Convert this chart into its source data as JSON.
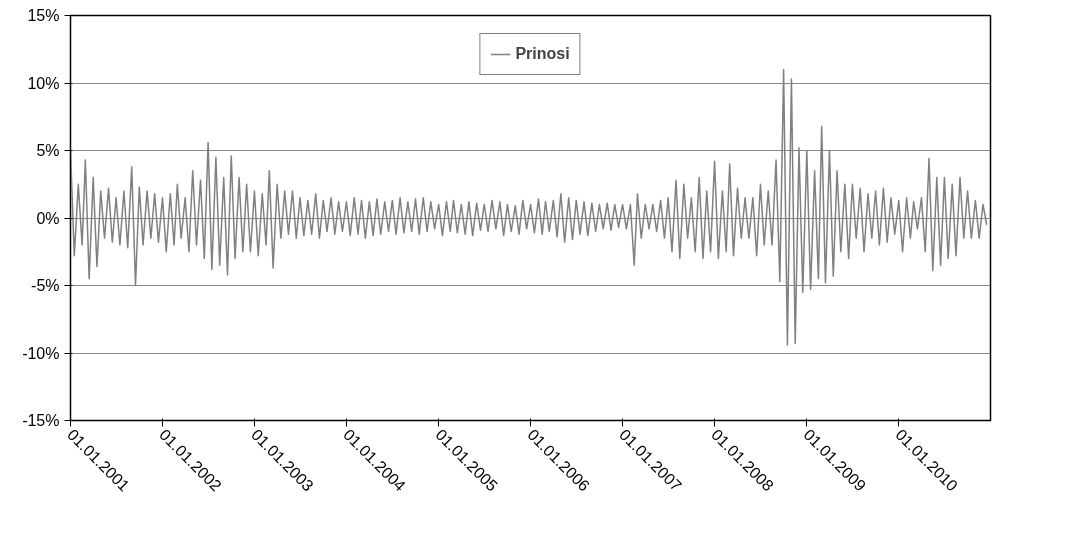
{
  "chart_data": {
    "type": "line",
    "x": [
      "2001-01-01",
      "2001-01-16",
      "2001-02-01",
      "2001-02-16",
      "2001-03-01",
      "2001-03-16",
      "2001-04-01",
      "2001-04-16",
      "2001-05-01",
      "2001-05-16",
      "2001-06-01",
      "2001-06-16",
      "2001-07-01",
      "2001-07-16",
      "2001-08-01",
      "2001-08-16",
      "2001-09-01",
      "2001-09-16",
      "2001-10-01",
      "2001-10-16",
      "2001-11-01",
      "2001-11-16",
      "2001-12-01",
      "2001-12-16",
      "2002-01-01",
      "2002-01-16",
      "2002-02-01",
      "2002-02-16",
      "2002-03-01",
      "2002-03-16",
      "2002-04-01",
      "2002-04-16",
      "2002-05-01",
      "2002-05-16",
      "2002-06-01",
      "2002-06-16",
      "2002-07-01",
      "2002-07-16",
      "2002-08-01",
      "2002-08-16",
      "2002-09-01",
      "2002-09-16",
      "2002-10-01",
      "2002-10-16",
      "2002-11-01",
      "2002-11-16",
      "2002-12-01",
      "2002-12-16",
      "2003-01-01",
      "2003-01-16",
      "2003-02-01",
      "2003-02-16",
      "2003-03-01",
      "2003-03-16",
      "2003-04-01",
      "2003-04-16",
      "2003-05-01",
      "2003-05-16",
      "2003-06-01",
      "2003-06-16",
      "2003-07-01",
      "2003-07-16",
      "2003-08-01",
      "2003-08-16",
      "2003-09-01",
      "2003-09-16",
      "2003-10-01",
      "2003-10-16",
      "2003-11-01",
      "2003-11-16",
      "2003-12-01",
      "2003-12-16",
      "2004-01-01",
      "2004-01-16",
      "2004-02-01",
      "2004-02-16",
      "2004-03-01",
      "2004-03-16",
      "2004-04-01",
      "2004-04-16",
      "2004-05-01",
      "2004-05-16",
      "2004-06-01",
      "2004-06-16",
      "2004-07-01",
      "2004-07-16",
      "2004-08-01",
      "2004-08-16",
      "2004-09-01",
      "2004-09-16",
      "2004-10-01",
      "2004-10-16",
      "2004-11-01",
      "2004-11-16",
      "2004-12-01",
      "2004-12-16",
      "2005-01-01",
      "2005-01-16",
      "2005-02-01",
      "2005-02-16",
      "2005-03-01",
      "2005-03-16",
      "2005-04-01",
      "2005-04-16",
      "2005-05-01",
      "2005-05-16",
      "2005-06-01",
      "2005-06-16",
      "2005-07-01",
      "2005-07-16",
      "2005-08-01",
      "2005-08-16",
      "2005-09-01",
      "2005-09-16",
      "2005-10-01",
      "2005-10-16",
      "2005-11-01",
      "2005-11-16",
      "2005-12-01",
      "2005-12-16",
      "2006-01-01",
      "2006-01-16",
      "2006-02-01",
      "2006-02-16",
      "2006-03-01",
      "2006-03-16",
      "2006-04-01",
      "2006-04-16",
      "2006-05-01",
      "2006-05-16",
      "2006-06-01",
      "2006-06-16",
      "2006-07-01",
      "2006-07-16",
      "2006-08-01",
      "2006-08-16",
      "2006-09-01",
      "2006-09-16",
      "2006-10-01",
      "2006-10-16",
      "2006-11-01",
      "2006-11-16",
      "2006-12-01",
      "2006-12-16",
      "2007-01-01",
      "2007-01-16",
      "2007-02-01",
      "2007-02-16",
      "2007-03-01",
      "2007-03-16",
      "2007-04-01",
      "2007-04-16",
      "2007-05-01",
      "2007-05-16",
      "2007-06-01",
      "2007-06-16",
      "2007-07-01",
      "2007-07-16",
      "2007-08-01",
      "2007-08-16",
      "2007-09-01",
      "2007-09-16",
      "2007-10-01",
      "2007-10-16",
      "2007-11-01",
      "2007-11-16",
      "2007-12-01",
      "2007-12-16",
      "2008-01-01",
      "2008-01-16",
      "2008-02-01",
      "2008-02-16",
      "2008-03-01",
      "2008-03-16",
      "2008-04-01",
      "2008-04-16",
      "2008-05-01",
      "2008-05-16",
      "2008-06-01",
      "2008-06-16",
      "2008-07-01",
      "2008-07-16",
      "2008-08-01",
      "2008-08-16",
      "2008-09-01",
      "2008-09-16",
      "2008-10-01",
      "2008-10-16",
      "2008-11-01",
      "2008-11-16",
      "2008-12-01",
      "2008-12-16",
      "2009-01-01",
      "2009-01-16",
      "2009-02-01",
      "2009-02-16",
      "2009-03-01",
      "2009-03-16",
      "2009-04-01",
      "2009-04-16",
      "2009-05-01",
      "2009-05-16",
      "2009-06-01",
      "2009-06-16",
      "2009-07-01",
      "2009-07-16",
      "2009-08-01",
      "2009-08-16",
      "2009-09-01",
      "2009-09-16",
      "2009-10-01",
      "2009-10-16",
      "2009-11-01",
      "2009-11-16",
      "2009-12-01",
      "2009-12-16",
      "2010-01-01",
      "2010-01-16",
      "2010-02-01",
      "2010-02-16",
      "2010-03-01",
      "2010-03-16",
      "2010-04-01",
      "2010-04-16",
      "2010-05-01",
      "2010-05-16",
      "2010-06-01",
      "2010-06-16",
      "2010-07-01",
      "2010-07-16",
      "2010-08-01",
      "2010-08-16",
      "2010-09-01",
      "2010-09-16",
      "2010-10-01",
      "2010-10-16",
      "2010-11-01",
      "2010-11-16",
      "2010-12-01",
      "2010-12-16"
    ],
    "series": [
      {
        "name": "Prinosi",
        "color": "#808080",
        "values": [
          5,
          -2.8,
          2.5,
          -2,
          4.3,
          -4.5,
          3,
          -3.6,
          2,
          -1.5,
          2.2,
          -1.8,
          1.5,
          -2,
          2,
          -2.2,
          3.8,
          -5,
          2.3,
          -2,
          2,
          -1.5,
          1.8,
          -1.8,
          1.5,
          -2.5,
          1.8,
          -2,
          2.5,
          -1.5,
          1.5,
          -2.5,
          3.5,
          -2,
          2.8,
          -3,
          5.6,
          -3.8,
          4.5,
          -3.5,
          3,
          -4.2,
          4.6,
          -3,
          3,
          -2.5,
          2.5,
          -2.5,
          2,
          -2.8,
          1.8,
          -2,
          3.5,
          -3.7,
          2.5,
          -1.5,
          2,
          -1.2,
          2,
          -1.5,
          1.5,
          -1.3,
          1.3,
          -1.2,
          1.8,
          -1.5,
          1.3,
          -1,
          1.5,
          -1.2,
          1.2,
          -1,
          1.2,
          -1.3,
          1.5,
          -1.2,
          1.3,
          -1.5,
          1.2,
          -1.3,
          1.4,
          -1.2,
          1.2,
          -1,
          1.3,
          -1.2,
          1.5,
          -1.1,
          1.2,
          -1,
          1.4,
          -1.2,
          1.5,
          -1,
          1.2,
          -0.8,
          1,
          -1.3,
          1.2,
          -1,
          1.3,
          -1.1,
          1,
          -1.2,
          1.2,
          -1.3,
          1.1,
          -0.9,
          1,
          -1,
          1.3,
          -0.8,
          1.2,
          -1.3,
          1,
          -1,
          0.9,
          -1.2,
          1.3,
          -0.8,
          1,
          -1.1,
          1.4,
          -1.2,
          1.2,
          -1,
          1.3,
          -1.4,
          1.8,
          -1.8,
          1.5,
          -1.6,
          1.3,
          -1.2,
          1.2,
          -1.3,
          1.1,
          -1,
          1,
          -0.8,
          1.1,
          -0.9,
          1,
          -0.7,
          1,
          -0.8,
          1,
          -3.5,
          1.8,
          -1.5,
          1,
          -0.8,
          1,
          -1,
          1.3,
          -1.5,
          1.5,
          -2.5,
          2.8,
          -3,
          2.5,
          -1.5,
          1.5,
          -2.5,
          3,
          -3,
          2,
          -2.5,
          4.2,
          -3,
          2,
          -2.5,
          4,
          -2.8,
          2.2,
          -1.5,
          1.5,
          -1.5,
          1.5,
          -2.8,
          2.5,
          -2,
          2,
          -2,
          4.3,
          -4.7,
          11,
          -9.4,
          10.3,
          -9.3,
          5.2,
          -5.5,
          5,
          -5.3,
          3.5,
          -4.5,
          6.8,
          -4.8,
          5,
          -4.3,
          3.5,
          -2.5,
          2.5,
          -3,
          2.5,
          -1.5,
          2.2,
          -2.5,
          1.8,
          -1.5,
          2,
          -2,
          2.2,
          -1.8,
          1.5,
          -1.2,
          1.3,
          -2.5,
          1.5,
          -1.5,
          1.2,
          -0.8,
          1.5,
          -2.5,
          4.4,
          -3.9,
          3,
          -3.5,
          3,
          -3,
          2.5,
          -2.8,
          3,
          -1.5,
          2,
          -1.5,
          1.3,
          -1.5,
          1,
          -0.5
        ]
      }
    ],
    "xlim": [
      "2001-01-01",
      "2010-12-31"
    ],
    "xticks": [
      {
        "value": "2001-01-01",
        "label": "01.01.2001"
      },
      {
        "value": "2002-01-01",
        "label": "01.01.2002"
      },
      {
        "value": "2003-01-01",
        "label": "01.01.2003"
      },
      {
        "value": "2004-01-01",
        "label": "01.01.2004"
      },
      {
        "value": "2005-01-01",
        "label": "01.01.2005"
      },
      {
        "value": "2006-01-01",
        "label": "01.01.2006"
      },
      {
        "value": "2007-01-01",
        "label": "01.01.2007"
      },
      {
        "value": "2008-01-01",
        "label": "01.01.2008"
      },
      {
        "value": "2009-01-01",
        "label": "01.01.2009"
      },
      {
        "value": "2010-01-01",
        "label": "01.01.2010"
      }
    ],
    "ylim": [
      -15,
      15
    ],
    "yticks": [
      {
        "value": -15,
        "label": "-15%"
      },
      {
        "value": -10,
        "label": "-10%"
      },
      {
        "value": -5,
        "label": "-5%"
      },
      {
        "value": 0,
        "label": "0%"
      },
      {
        "value": 5,
        "label": "5%"
      },
      {
        "value": 10,
        "label": "10%"
      },
      {
        "value": 15,
        "label": "15%"
      }
    ],
    "grid": "y",
    "legend": "top",
    "line_style": "solid"
  }
}
